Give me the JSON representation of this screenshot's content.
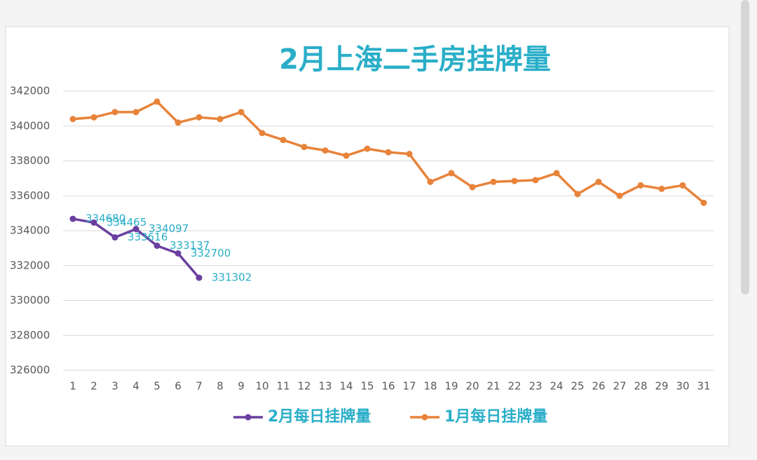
{
  "chart_data": {
    "type": "line",
    "title": "2月上海二手房挂牌量",
    "categories": [
      "1",
      "2",
      "3",
      "4",
      "5",
      "6",
      "7",
      "8",
      "9",
      "10",
      "11",
      "12",
      "13",
      "14",
      "15",
      "16",
      "17",
      "18",
      "19",
      "20",
      "21",
      "22",
      "23",
      "24",
      "25",
      "26",
      "27",
      "28",
      "29",
      "30",
      "31"
    ],
    "series": [
      {
        "name": "2月每日挂牌量",
        "color": "#6a3fa0",
        "data_labels": true,
        "values": [
          334680,
          334465,
          333616,
          334097,
          333137,
          332700,
          331302,
          null,
          null,
          null,
          null,
          null,
          null,
          null,
          null,
          null,
          null,
          null,
          null,
          null,
          null,
          null,
          null,
          null,
          null,
          null,
          null,
          null,
          null,
          null,
          null
        ]
      },
      {
        "name": "1月每日挂牌量",
        "color": "#e8833a",
        "data_labels": false,
        "values": [
          340400,
          340500,
          340800,
          340800,
          341400,
          340200,
          340500,
          340400,
          340800,
          339600,
          339200,
          338800,
          338600,
          338300,
          338700,
          338500,
          338400,
          336800,
          337300,
          336500,
          336800,
          336850,
          336900,
          337300,
          336100,
          336800,
          336000,
          336600,
          336400,
          336600,
          335600
        ]
      }
    ],
    "ylim": [
      326000,
      342000
    ],
    "yticks": [
      326000,
      328000,
      330000,
      332000,
      334000,
      336000,
      338000,
      340000,
      342000
    ],
    "grid": true,
    "legend": "bottom",
    "label_color": "#2aaec8"
  }
}
